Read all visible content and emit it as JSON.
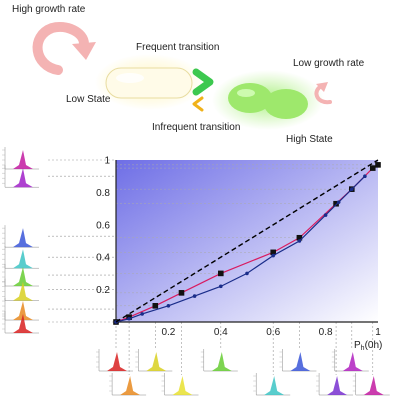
{
  "top": {
    "high_growth_rate": "High growth rate",
    "frequent_transition": "Frequent transition",
    "low_growth_rate": "Low growth rate",
    "low_state": "Low State",
    "infrequent_transition": "Infrequent transition",
    "high_state": "High State"
  },
  "colors": {
    "low_state_cell": "#fff3cf",
    "high_state_cell": "#9fe86f",
    "frequent_arrow": "#3cc84f",
    "infrequent_arrow": "#f0b21a",
    "growth_arrow": "#f2aaaa",
    "plot_gradient_dark": "#6e6ee6",
    "plot_gradient_light": "#ffffff",
    "series_square": "#d81b60",
    "series_dot": "#1a2d8a",
    "diagonal": "#000000"
  },
  "chart_data": {
    "type": "line",
    "xlabel": "P_h(0h)",
    "ylabel": "",
    "xlim": [
      0,
      1
    ],
    "ylim": [
      0,
      1
    ],
    "xticks": [
      "0.2",
      "0.4",
      "0.6",
      "0.8",
      "1"
    ],
    "yticks": [
      "0.2",
      "0.4",
      "0.6",
      "0.8",
      "1"
    ],
    "series": [
      {
        "marker": "square",
        "color": "#d81b60",
        "x": [
          0.0,
          0.05,
          0.15,
          0.25,
          0.4,
          0.6,
          0.7,
          0.84,
          0.9,
          0.98,
          1.0
        ],
        "y": [
          0.0,
          0.03,
          0.1,
          0.18,
          0.3,
          0.43,
          0.52,
          0.73,
          0.82,
          0.95,
          0.97
        ]
      },
      {
        "marker": "dot",
        "color": "#1a2d8a",
        "x": [
          0.0,
          0.05,
          0.1,
          0.2,
          0.3,
          0.4,
          0.5,
          0.6,
          0.7,
          0.8,
          0.85,
          0.9,
          0.95
        ],
        "y": [
          0.0,
          0.02,
          0.05,
          0.1,
          0.16,
          0.22,
          0.3,
          0.41,
          0.5,
          0.66,
          0.74,
          0.82,
          0.9
        ]
      },
      {
        "marker": "none",
        "style": "dashed",
        "color": "#000000",
        "x": [
          0,
          1
        ],
        "y": [
          0,
          1
        ]
      }
    ],
    "insets_left": [
      {
        "color": "#c21aa0",
        "y": 1.0
      },
      {
        "color": "#a020c8",
        "y": 0.9
      },
      {
        "color": "#3a56d8",
        "y": 0.53
      },
      {
        "color": "#3cc4c4",
        "y": 0.4
      },
      {
        "color": "#66cc33",
        "y": 0.29
      },
      {
        "color": "#d8d020",
        "y": 0.2
      },
      {
        "color": "#e88a20",
        "y": 0.08
      },
      {
        "color": "#d82020",
        "y": 0.0
      }
    ],
    "insets_bottom": [
      {
        "color": "#d82020",
        "x": 0.0,
        "row": 0
      },
      {
        "color": "#e88a20",
        "x": 0.05,
        "row": 1
      },
      {
        "color": "#d8d020",
        "x": 0.15,
        "row": 0
      },
      {
        "color": "#e8e030",
        "x": 0.25,
        "row": 1
      },
      {
        "color": "#66cc33",
        "x": 0.4,
        "row": 0
      },
      {
        "color": "#3cc4c4",
        "x": 0.6,
        "row": 1
      },
      {
        "color": "#3a56d8",
        "x": 0.7,
        "row": 0
      },
      {
        "color": "#7830d0",
        "x": 0.84,
        "row": 1
      },
      {
        "color": "#b020c0",
        "x": 0.9,
        "row": 0
      },
      {
        "color": "#c21aa0",
        "x": 0.98,
        "row": 1
      }
    ]
  }
}
